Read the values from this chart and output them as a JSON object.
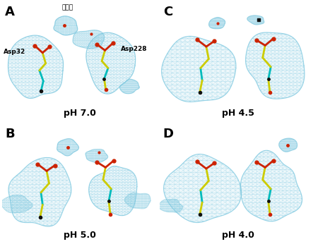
{
  "panel_labels": [
    "A",
    "B",
    "C",
    "D"
  ],
  "ph_labels": [
    "pH 7.0",
    "pH 5.0",
    "pH 4.5",
    "pH 4.0"
  ],
  "water_label": "水分子",
  "asp32_label": "Asp32",
  "asp228_label": "Asp228",
  "bg_color": "#ffffff",
  "mesh_color": "#7ac8e0",
  "mesh_fill_color": "#b8e0f0",
  "bond_yellow": "#cccc00",
  "bond_cyan": "#00bbbb",
  "bond_red": "#cc2200",
  "bond_black": "#111111",
  "figure_width": 4.5,
  "figure_height": 3.46,
  "dpi": 100
}
